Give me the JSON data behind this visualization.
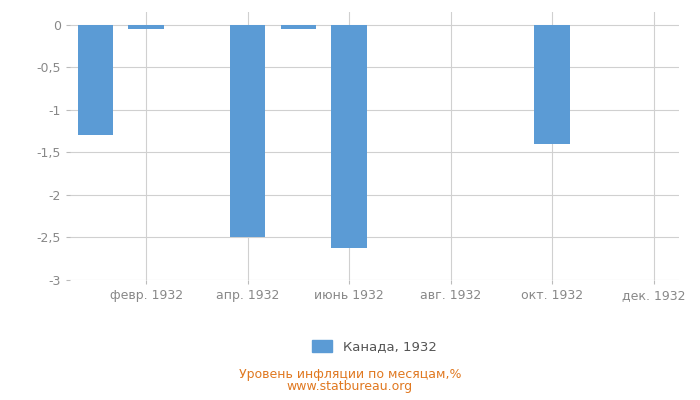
{
  "months_count": 12,
  "values": [
    -1.3,
    -0.05,
    0.0,
    -2.5,
    -0.05,
    -2.62,
    0.0,
    0.0,
    0.0,
    -1.4,
    0.0,
    0.0
  ],
  "bar_color": "#5b9bd5",
  "ylim": [
    -3.0,
    0.15
  ],
  "yticks": [
    0,
    -0.5,
    -1,
    -1.5,
    -2,
    -2.5,
    -3
  ],
  "ytick_labels": [
    "0",
    "-0,5",
    "-1",
    "-1,5",
    "-2",
    "-2,5",
    "-3"
  ],
  "xtick_positions": [
    1,
    3,
    5,
    7,
    9,
    11
  ],
  "xtick_labels": [
    "февр. 1932",
    "апр. 1932",
    "июнь 1932",
    "авг. 1932",
    "окт. 1932",
    "дек. 1932"
  ],
  "legend_label": "Канада, 1932",
  "xlabel": "Уровень инфляции по месяцам,%",
  "watermark": "www.statbureau.org",
  "grid_color": "#d0d0d0",
  "background_color": "#ffffff",
  "bar_width": 0.7,
  "tick_color": "#888888",
  "text_color": "#e07820"
}
